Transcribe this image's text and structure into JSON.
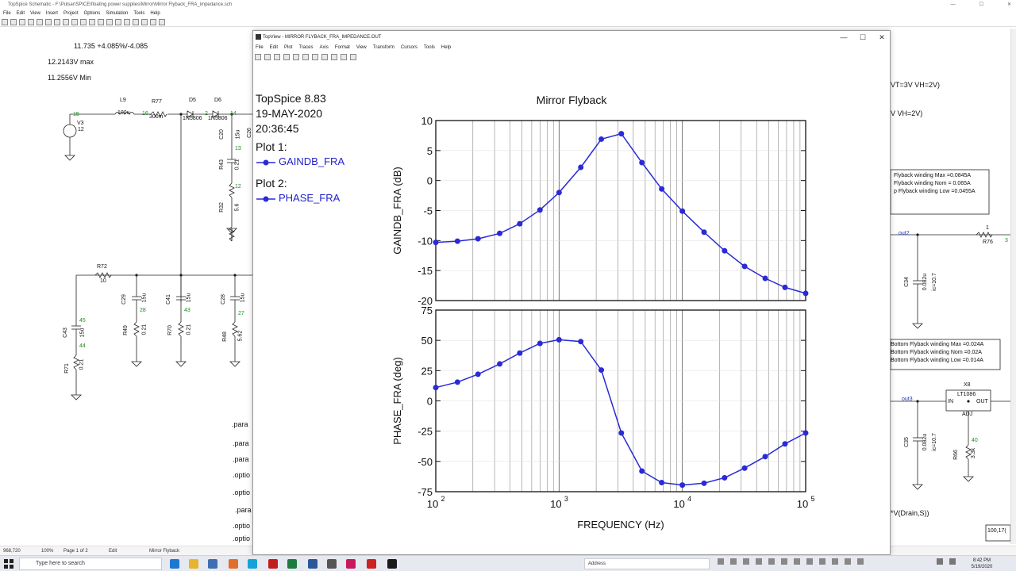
{
  "main_window": {
    "title": "TopSpice Schematic - F:\\Pulsar\\SPICE\\floating power supplies\\Mirror\\Mirror Flyback_FRA_impedance.sch",
    "menu": [
      "File",
      "Edit",
      "View",
      "Insert",
      "Project",
      "Options",
      "Simulation",
      "Tools",
      "Help"
    ],
    "window_buttons": [
      "—",
      "☐",
      "✕"
    ]
  },
  "schematic": {
    "result_lines": [
      "11.735 +4.085%/-4.085",
      "12.2143V max",
      "11.2556V Min"
    ],
    "components_left": {
      "L9": "L9",
      "L9_val": "100u",
      "R77": "R77",
      "R77_val": "300m",
      "D5": "D5",
      "D5_val": "1N5806",
      "D6": "D6",
      "D6_val": "1N5806",
      "V3": "V3",
      "V3_val": "12",
      "n15": "15",
      "n16": "16",
      "n14": "14",
      "n13": "13",
      "n12": "12",
      "n2": "2",
      "C20": "C20",
      "C20_val": "15u",
      "C26": "C26",
      "R43": "R43",
      "R43_val": "0.21",
      "R32": "R32",
      "R32_val": "5.6",
      "R72": "R72",
      "R72_val": "10",
      "C43": "C43",
      "C43_val": "15u",
      "R71": "R71",
      "R71_val": "0.21",
      "n45": "45",
      "n44": "44",
      "C29": "C29",
      "C29_val": "15u",
      "n28": "28",
      "R49": "R49",
      "R49_val": "0.21",
      "C41": "C41",
      "C41_val": "15u",
      "n43": "43",
      "R70": "R70",
      "R70_val": "0.21",
      "C28": "C28",
      "C28_val": "15u",
      "n27": "27",
      "R48": "R48",
      "R48_val": "5.62"
    },
    "param_lines": [
      ".para",
      ".para",
      ".para",
      ".optio",
      ".optio",
      ".para",
      ".optio",
      ".optio"
    ],
    "right": {
      "line1": "VT=3V VH=2V)",
      "line2": "V VH=2V)",
      "box1": [
        "Flyback winding Max =0.0845A",
        "Flyback winding Nom = 0.065A",
        "p Flyback winding Low =0.0455A"
      ],
      "out2": "out2",
      "R76": "R76",
      "R76_val": "1",
      "R76_node": "3",
      "C34": "C34",
      "C34_val": "0.082u",
      "C34_ic": "ic=10.7",
      "box2": [
        "Bottom Flyback winding Max =0.024A",
        "Bottom Flyback winding Nom =0.02A",
        "Bottom Flyback winding Low =0.014A"
      ],
      "X8": "X8",
      "X8_part": "LT1086",
      "pin_in": "IN",
      "pin_out": "OUT",
      "pin_adj": "ADJ",
      "out3": "out3",
      "C35": "C35",
      "C35_val": "0.082u",
      "C35_ic": "ic=10.7",
      "R66": "R66",
      "R66_val": "3.3k",
      "n40": "40",
      "expr": "*V(Drain,S))",
      "coord_box": "100,17("
    }
  },
  "status_bar": {
    "coords": "968,720",
    "zoom": "100%",
    "page": "Page 1 of 2",
    "mode": "Edit",
    "name": "Mirror Flyback"
  },
  "topview": {
    "title": "TopView - MIRROR FLYBACK_FRA_IMPEDANCE.OUT",
    "menu": [
      "File",
      "Edit",
      "Plot",
      "Traces",
      "Axis",
      "Format",
      "View",
      "Transform",
      "Cursors",
      "Tools",
      "Help"
    ],
    "window_buttons": [
      "—",
      "☐",
      "✕"
    ],
    "info": [
      "TopSpice 8.83",
      "19-MAY-2020",
      "20:36:45"
    ],
    "plot1_label": "Plot 1:",
    "plot1_trace": "GAINDB_FRA",
    "plot2_label": "Plot 2:",
    "plot2_trace": "PHASE_FRA",
    "trace_color": "#2a2ad6"
  },
  "chart_data": {
    "type": "line",
    "title": "Mirror Flyback",
    "xlabel": "FREQUENCY  (Hz)",
    "x_scale": "log",
    "xlim": [
      100,
      100000
    ],
    "x_ticks": [
      "10",
      "10",
      "10",
      "10"
    ],
    "x_tick_exponents": [
      "2",
      "3",
      "4",
      "5"
    ],
    "x": [
      100,
      150,
      220,
      330,
      480,
      700,
      1000,
      1500,
      2200,
      3200,
      4700,
      6800,
      10000,
      15000,
      22000,
      32000,
      47000,
      68000,
      100000
    ],
    "grid": true,
    "plots": [
      {
        "ylabel": "GAINDB_FRA  (dB)",
        "ylim": [
          -20,
          10
        ],
        "y_ticks": [
          "10",
          "5",
          "0",
          "-5",
          "-10",
          "-15",
          "-20"
        ],
        "series": [
          {
            "name": "GAINDB_FRA",
            "values": [
              -10.3,
              -10.1,
              -9.7,
              -8.8,
              -7.2,
              -4.9,
              -2.0,
              2.2,
              6.9,
              7.8,
              3.0,
              -1.4,
              -5.1,
              -8.6,
              -11.7,
              -14.3,
              -16.3,
              -17.8,
              -18.8
            ]
          }
        ]
      },
      {
        "ylabel": "PHASE_FRA  (deg)",
        "ylim": [
          -75,
          75
        ],
        "y_ticks": [
          "75",
          "50",
          "25",
          "0",
          "-25",
          "-50",
          "-75"
        ],
        "series": [
          {
            "name": "PHASE_FRA",
            "values": [
              11,
              15.5,
              22,
              30.5,
              39.5,
              47.5,
              50.5,
              49,
              25.5,
              -26.5,
              -58,
              -67.5,
              -69.5,
              -68,
              -63.5,
              -55.5,
              -46,
              -35.5,
              -26.5
            ]
          }
        ]
      }
    ]
  }
}
